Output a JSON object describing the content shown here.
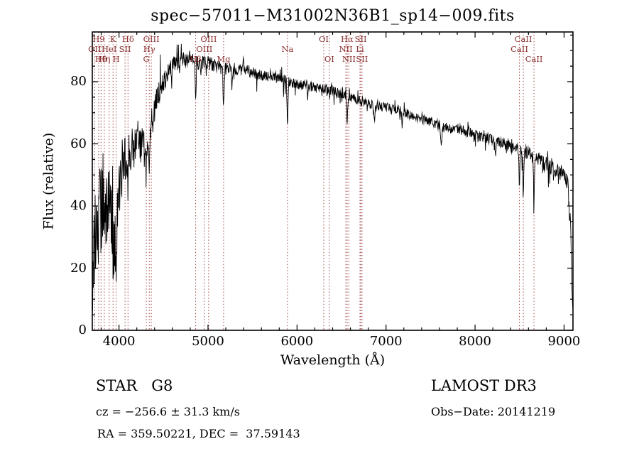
{
  "chart_data": {
    "type": "line",
    "title": "spec−57011−M31002N36B1_sp14−009.fits",
    "xlabel": "Wavelength (Å)",
    "ylabel": "Flux (relative)",
    "xlim": [
      3700,
      9100
    ],
    "ylim": [
      0,
      96
    ],
    "xticks": [
      4000,
      5000,
      6000,
      7000,
      8000,
      9000
    ],
    "yticks": [
      0,
      20,
      40,
      60,
      80
    ],
    "x_minor_step": 200,
    "y_minor_step": 5,
    "grid": false,
    "legend": "none",
    "line_color": "#000000",
    "marker_line_color": "#a04444",
    "marker_label_color": "#8b3030",
    "noise_seed": 20141219,
    "sample_step": 4,
    "continuum": [
      [
        3700,
        18
      ],
      [
        3730,
        28
      ],
      [
        3760,
        34
      ],
      [
        3790,
        40
      ],
      [
        3820,
        42
      ],
      [
        3850,
        40
      ],
      [
        3880,
        37
      ],
      [
        3910,
        35
      ],
      [
        3940,
        33
      ],
      [
        3970,
        36
      ],
      [
        4000,
        48
      ],
      [
        4050,
        54
      ],
      [
        4100,
        56
      ],
      [
        4150,
        59
      ],
      [
        4200,
        61
      ],
      [
        4250,
        60
      ],
      [
        4300,
        58
      ],
      [
        4350,
        64
      ],
      [
        4400,
        72
      ],
      [
        4450,
        77
      ],
      [
        4500,
        80
      ],
      [
        4550,
        83
      ],
      [
        4600,
        85
      ],
      [
        4700,
        87
      ],
      [
        4800,
        88
      ],
      [
        4900,
        86
      ],
      [
        5000,
        86
      ],
      [
        5100,
        85
      ],
      [
        5200,
        84
      ],
      [
        5300,
        84
      ],
      [
        5400,
        84
      ],
      [
        5500,
        83
      ],
      [
        5600,
        82
      ],
      [
        5700,
        82
      ],
      [
        5800,
        81
      ],
      [
        5900,
        80
      ],
      [
        6000,
        79
      ],
      [
        6100,
        79
      ],
      [
        6200,
        78
      ],
      [
        6300,
        78
      ],
      [
        6400,
        77
      ],
      [
        6500,
        76
      ],
      [
        6600,
        75
      ],
      [
        6700,
        74
      ],
      [
        6800,
        73
      ],
      [
        6900,
        72
      ],
      [
        7000,
        72
      ],
      [
        7100,
        71
      ],
      [
        7200,
        70
      ],
      [
        7300,
        69
      ],
      [
        7400,
        68
      ],
      [
        7500,
        67
      ],
      [
        7600,
        66
      ],
      [
        7700,
        65
      ],
      [
        7800,
        65
      ],
      [
        7900,
        64
      ],
      [
        8000,
        63
      ],
      [
        8100,
        62
      ],
      [
        8200,
        61
      ],
      [
        8300,
        60
      ],
      [
        8400,
        59
      ],
      [
        8500,
        58
      ],
      [
        8600,
        57
      ],
      [
        8700,
        55
      ],
      [
        8800,
        53
      ],
      [
        8900,
        52
      ],
      [
        9000,
        50
      ],
      [
        9040,
        47
      ],
      [
        9070,
        34
      ],
      [
        9100,
        5
      ]
    ],
    "noise_amplitude": [
      [
        3700,
        15
      ],
      [
        3780,
        16
      ],
      [
        3850,
        15
      ],
      [
        3950,
        13
      ],
      [
        4000,
        11
      ],
      [
        4100,
        9
      ],
      [
        4200,
        7
      ],
      [
        4300,
        6
      ],
      [
        4400,
        4.5
      ],
      [
        4500,
        3.5
      ],
      [
        4600,
        3
      ],
      [
        4800,
        2.6
      ],
      [
        5000,
        2.2
      ],
      [
        5500,
        1.9
      ],
      [
        6000,
        1.7
      ],
      [
        6500,
        1.5
      ],
      [
        7000,
        1.4
      ],
      [
        7500,
        1.5
      ],
      [
        8000,
        1.7
      ],
      [
        8500,
        2
      ],
      [
        8800,
        2.3
      ],
      [
        9000,
        2.6
      ],
      [
        9100,
        4
      ]
    ],
    "absorption_features": [
      [
        3933,
        16,
        7
      ],
      [
        3968,
        13,
        7
      ],
      [
        4101,
        9,
        5
      ],
      [
        4227,
        5,
        4
      ],
      [
        4305,
        9,
        9
      ],
      [
        4340,
        8,
        5
      ],
      [
        4383,
        7,
        4
      ],
      [
        4455,
        4,
        4
      ],
      [
        4861,
        15,
        4
      ],
      [
        4920,
        4,
        4
      ],
      [
        5175,
        11,
        6
      ],
      [
        5270,
        6,
        5
      ],
      [
        5893,
        17,
        5
      ],
      [
        6122,
        4,
        4
      ],
      [
        6280,
        3,
        4
      ],
      [
        6563,
        9,
        5
      ],
      [
        6870,
        5,
        6
      ],
      [
        7180,
        4,
        5
      ],
      [
        7620,
        6,
        8
      ],
      [
        8230,
        4,
        5
      ],
      [
        8498,
        11,
        5
      ],
      [
        8542,
        15,
        5
      ],
      [
        8662,
        14,
        5
      ]
    ],
    "spectral_lines": [
      {
        "label": "H9",
        "wavelength": 3771,
        "row": 1
      },
      {
        "label": "K",
        "wavelength": 3933,
        "row": 1
      },
      {
        "label": "Hδ",
        "wavelength": 4101,
        "row": 1
      },
      {
        "label": "OIII",
        "wavelength": 4363,
        "row": 1
      },
      {
        "label": "OIII",
        "wavelength": 5007,
        "row": 1
      },
      {
        "label": "OI",
        "wavelength": 6300,
        "row": 1
      },
      {
        "label": "Hα",
        "wavelength": 6563,
        "row": 1
      },
      {
        "label": "SII",
        "wavelength": 6716,
        "row": 1
      },
      {
        "label": "CaII",
        "wavelength": 8542,
        "row": 1
      },
      {
        "label": "OII",
        "wavelength": 3727,
        "row": 2
      },
      {
        "label": "HeI",
        "wavelength": 3889,
        "row": 2
      },
      {
        "label": "SII",
        "wavelength": 4068,
        "row": 2
      },
      {
        "label": "Hγ",
        "wavelength": 4340,
        "row": 2
      },
      {
        "label": "OIII",
        "wavelength": 4959,
        "row": 2
      },
      {
        "label": "Na",
        "wavelength": 5893,
        "row": 2
      },
      {
        "label": "NII",
        "wavelength": 6548,
        "row": 2
      },
      {
        "label": "Li",
        "wavelength": 6707,
        "row": 2
      },
      {
        "label": "CaII",
        "wavelength": 8498,
        "row": 2
      },
      {
        "label": "Hθ",
        "wavelength": 3798,
        "row": 3
      },
      {
        "label": "Hη",
        "wavelength": 3835,
        "row": 3
      },
      {
        "label": "H",
        "wavelength": 3968,
        "row": 3
      },
      {
        "label": "G",
        "wavelength": 4307,
        "row": 3
      },
      {
        "label": "Hβ",
        "wavelength": 4861,
        "row": 3
      },
      {
        "label": "Mg",
        "wavelength": 5175,
        "row": 3
      },
      {
        "label": "OI",
        "wavelength": 6363,
        "row": 3
      },
      {
        "label": "NII",
        "wavelength": 6583,
        "row": 3
      },
      {
        "label": "SII",
        "wavelength": 6730,
        "row": 3
      },
      {
        "label": "CaII",
        "wavelength": 8662,
        "row": 3
      }
    ]
  },
  "footer": {
    "object_class": "STAR   G8",
    "survey": "LAMOST DR3",
    "cz": "cz = −256.6 ± 31.3 km/s",
    "obs_date": "Obs−Date: 20141219",
    "coords": "RA = 359.50221, DEC =  37.59143"
  }
}
